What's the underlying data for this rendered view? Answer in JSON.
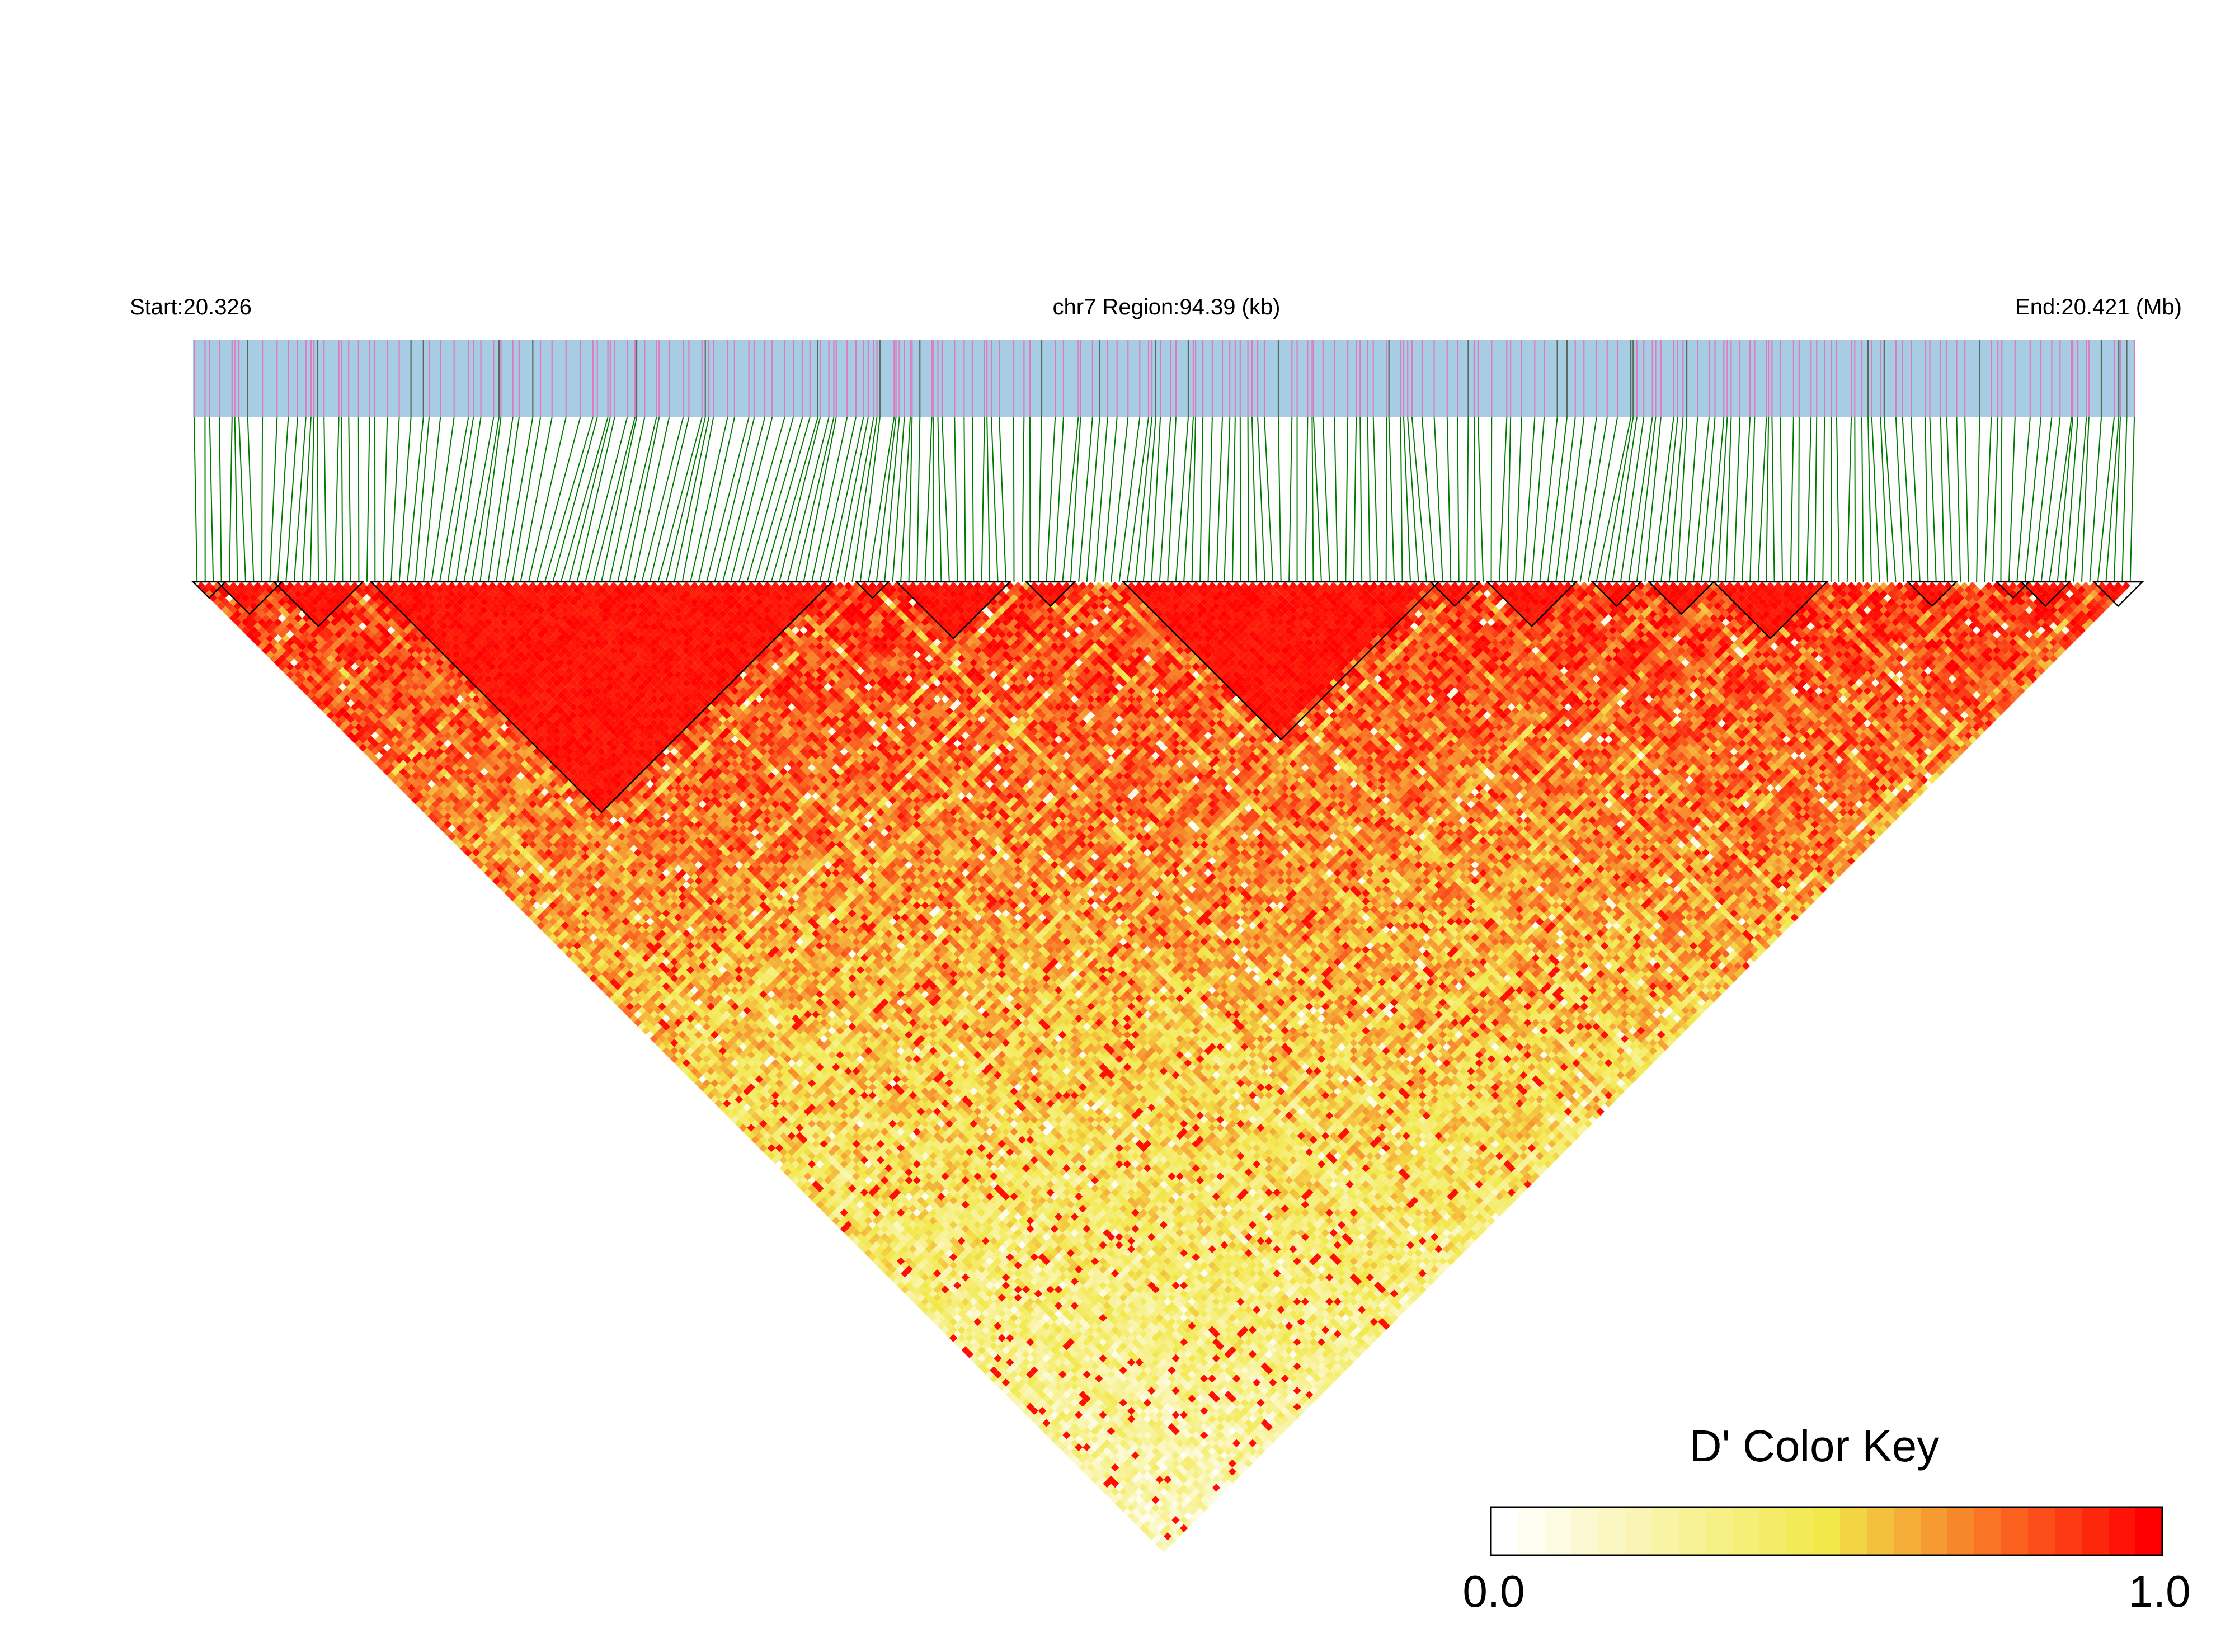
{
  "chart_data": {
    "type": "heatmap",
    "subtype": "linkage-disequilibrium-triangle",
    "metric": "D'",
    "chromosome": "chr7",
    "region_length_kb": 94.39,
    "start_mb": 20.326,
    "end_mb": 20.421,
    "labels": {
      "start": "Start:20.326",
      "region": "chr7 Region:94.39 (kb)",
      "end": "End:20.421 (Mb)"
    },
    "snp_count_estimate": 240,
    "haplotype_blocks_snp_index_ranges": [
      [
        0,
        3
      ],
      [
        3,
        10
      ],
      [
        10,
        20
      ],
      [
        22,
        78
      ],
      [
        82,
        85
      ],
      [
        87,
        100
      ],
      [
        103,
        108
      ],
      [
        115,
        153
      ],
      [
        153,
        158
      ],
      [
        160,
        170
      ],
      [
        173,
        178
      ],
      [
        180,
        187
      ],
      [
        188,
        201
      ],
      [
        212,
        217
      ],
      [
        223,
        226
      ],
      [
        226,
        231
      ],
      [
        235,
        240
      ]
    ],
    "color_key": {
      "title": "D' Color Key",
      "min": 0.0,
      "max": 1.0,
      "min_label": "0.0",
      "max_label": "1.0",
      "low_color": "#ffffff",
      "mid_color": "#f2e84a",
      "high_color": "#ff0000"
    },
    "colors": {
      "snp_track": "#a6cde3",
      "snp_tick": "#e07ac0",
      "snp_tick_alt": "#5a6a5a",
      "connector_lines": "#007a00",
      "block_outline": "#000000"
    }
  }
}
